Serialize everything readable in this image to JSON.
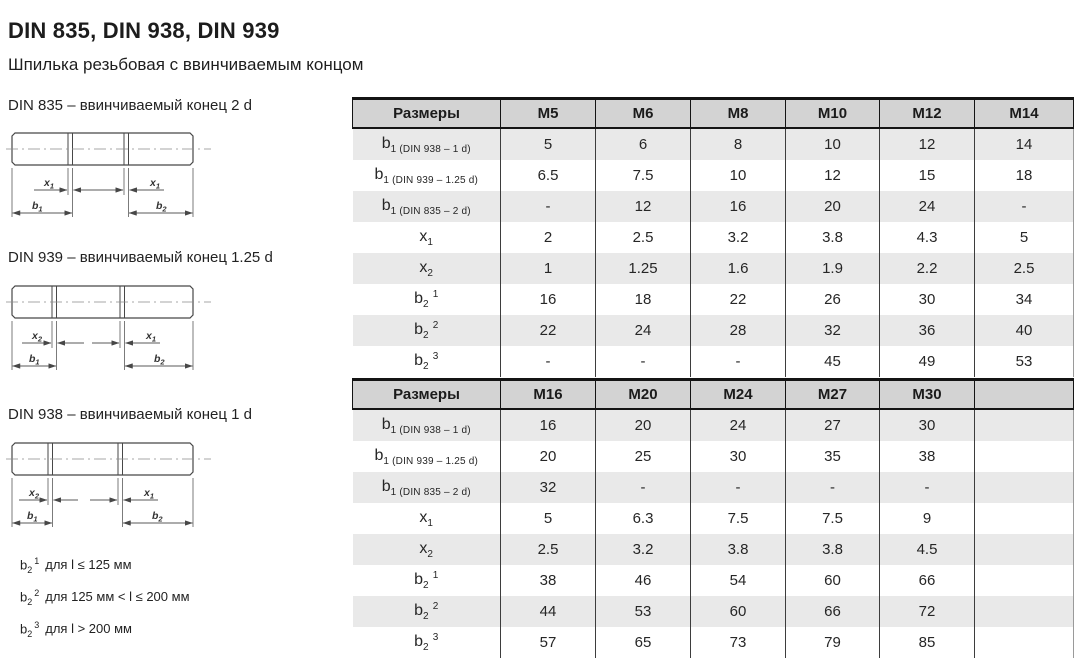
{
  "header": {
    "title": "DIN 835, DIN 938, DIN 939",
    "subtitle": "Шпилька резьбовая с ввинчиваемым концом"
  },
  "drawings": [
    {
      "caption": "DIN 835 – ввинчиваемый конец 2 d",
      "labels": {
        "x_left": {
          "base": "x",
          "sub": "1"
        },
        "x_right": {
          "base": "x",
          "sub": "1"
        },
        "b_left": {
          "base": "b",
          "sub": "1"
        },
        "b_right": {
          "base": "b",
          "sub": "2"
        }
      }
    },
    {
      "caption": "DIN 939 – ввинчиваемый конец 1.25 d",
      "labels": {
        "x_left": {
          "base": "x",
          "sub": "2"
        },
        "x_right": {
          "base": "x",
          "sub": "1"
        },
        "b_left": {
          "base": "b",
          "sub": "1"
        },
        "b_right": {
          "base": "b",
          "sub": "2"
        }
      }
    },
    {
      "caption": "DIN 938 – ввинчиваемый конец 1 d",
      "labels": {
        "x_left": {
          "base": "x",
          "sub": "2"
        },
        "x_right": {
          "base": "x",
          "sub": "1"
        },
        "b_left": {
          "base": "b",
          "sub": "1"
        },
        "b_right": {
          "base": "b",
          "sub": "2"
        }
      }
    }
  ],
  "footnotes": [
    {
      "base": "b",
      "sub": "2",
      "sup": "1",
      "text": "для l ≤ 125 мм"
    },
    {
      "base": "b",
      "sub": "2",
      "sup": "2",
      "text": "для 125 мм < l ≤ 200 мм"
    },
    {
      "base": "b",
      "sub": "2",
      "sup": "3",
      "text": "для l > 200 мм"
    }
  ],
  "tables": [
    {
      "headers": [
        "Размеры",
        "M5",
        "M6",
        "M8",
        "M10",
        "M12",
        "M14"
      ],
      "rows": [
        {
          "label": {
            "base": "b",
            "sub": "1 (DIN 938 – 1 d)",
            "sup": ""
          },
          "values": [
            "5",
            "6",
            "8",
            "10",
            "12",
            "14"
          ]
        },
        {
          "label": {
            "base": "b",
            "sub": "1 (DIN 939 – 1.25 d)",
            "sup": ""
          },
          "values": [
            "6.5",
            "7.5",
            "10",
            "12",
            "15",
            "18"
          ]
        },
        {
          "label": {
            "base": "b",
            "sub": "1 (DIN 835 – 2 d)",
            "sup": ""
          },
          "values": [
            "-",
            "12",
            "16",
            "20",
            "24",
            "-"
          ]
        },
        {
          "label": {
            "base": "x",
            "sub": "1",
            "sup": ""
          },
          "values": [
            "2",
            "2.5",
            "3.2",
            "3.8",
            "4.3",
            "5"
          ]
        },
        {
          "label": {
            "base": "x",
            "sub": "2",
            "sup": ""
          },
          "values": [
            "1",
            "1.25",
            "1.6",
            "1.9",
            "2.2",
            "2.5"
          ]
        },
        {
          "label": {
            "base": "b",
            "sub": "2",
            "sup": "1"
          },
          "values": [
            "16",
            "18",
            "22",
            "26",
            "30",
            "34"
          ]
        },
        {
          "label": {
            "base": "b",
            "sub": "2",
            "sup": "2"
          },
          "values": [
            "22",
            "24",
            "28",
            "32",
            "36",
            "40"
          ]
        },
        {
          "label": {
            "base": "b",
            "sub": "2",
            "sup": "3"
          },
          "values": [
            "-",
            "-",
            "-",
            "45",
            "49",
            "53"
          ]
        }
      ]
    },
    {
      "headers": [
        "Размеры",
        "M16",
        "M20",
        "M24",
        "M27",
        "M30",
        ""
      ],
      "rows": [
        {
          "label": {
            "base": "b",
            "sub": "1 (DIN 938 – 1 d)",
            "sup": ""
          },
          "values": [
            "16",
            "20",
            "24",
            "27",
            "30",
            ""
          ]
        },
        {
          "label": {
            "base": "b",
            "sub": "1 (DIN 939 – 1.25 d)",
            "sup": ""
          },
          "values": [
            "20",
            "25",
            "30",
            "35",
            "38",
            ""
          ]
        },
        {
          "label": {
            "base": "b",
            "sub": "1 (DIN 835 – 2 d)",
            "sup": ""
          },
          "values": [
            "32",
            "-",
            "-",
            "-",
            "-",
            ""
          ]
        },
        {
          "label": {
            "base": "x",
            "sub": "1",
            "sup": ""
          },
          "values": [
            "5",
            "6.3",
            "7.5",
            "7.5",
            "9",
            ""
          ]
        },
        {
          "label": {
            "base": "x",
            "sub": "2",
            "sup": ""
          },
          "values": [
            "2.5",
            "3.2",
            "3.8",
            "3.8",
            "4.5",
            ""
          ]
        },
        {
          "label": {
            "base": "b",
            "sub": "2",
            "sup": "1"
          },
          "values": [
            "38",
            "46",
            "54",
            "60",
            "66",
            ""
          ]
        },
        {
          "label": {
            "base": "b",
            "sub": "2",
            "sup": "2"
          },
          "values": [
            "44",
            "53",
            "60",
            "66",
            "72",
            ""
          ]
        },
        {
          "label": {
            "base": "b",
            "sub": "2",
            "sup": "3"
          },
          "values": [
            "57",
            "65",
            "73",
            "79",
            "85",
            ""
          ]
        }
      ]
    }
  ],
  "colors": {
    "header_bg": "#d3d3d3",
    "row_alt_bg": "#e9e9e9",
    "row_bg": "#ffffff",
    "border_strong": "#141414",
    "border_thin": "#3d3d3d",
    "text": "#262626"
  }
}
